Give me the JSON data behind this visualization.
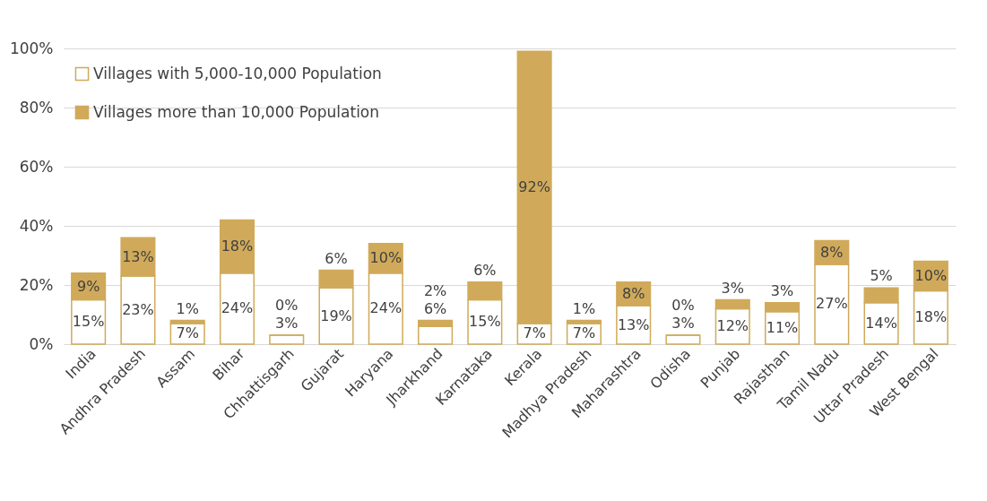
{
  "chart_data": {
    "type": "bar",
    "stacked": true,
    "categories": [
      "India",
      "Andhra Pradesh",
      "Assam",
      "Bihar",
      "Chhattisgarh",
      "Gujarat",
      "Haryana",
      "Jharkhand",
      "Karnataka",
      "Kerala",
      "Madhya Pradesh",
      "Maharashtra",
      "Odisha",
      "Punjab",
      "Rajasthan",
      "Tamil Nadu",
      "Uttar Pradesh",
      "West Bengal"
    ],
    "series": [
      {
        "name": "Villages with 5,000-10,000 Population",
        "color": "#ffffff",
        "values": [
          15,
          23,
          7,
          24,
          3,
          19,
          24,
          6,
          15,
          7,
          7,
          13,
          3,
          12,
          11,
          27,
          14,
          18
        ],
        "value_labels": [
          "15%",
          "23%",
          "7%",
          "24%",
          "3%",
          "19%",
          "24%",
          "6%",
          "15%",
          "7%",
          "7%",
          "13%",
          "3%",
          "12%",
          "11%",
          "27%",
          "14%",
          "18%"
        ]
      },
      {
        "name": "Villages more than 10,000 Population",
        "color": "#d0aa5a",
        "values": [
          9,
          13,
          1,
          18,
          0,
          6,
          10,
          2,
          6,
          92,
          1,
          8,
          0,
          3,
          3,
          8,
          5,
          10
        ],
        "value_labels": [
          "9%",
          "13%",
          "1%",
          "18%",
          "0%",
          "6%",
          "10%",
          "2%",
          "6%",
          "92%",
          "1%",
          "8%",
          "0%",
          "3%",
          "3%",
          "8%",
          "5%",
          "10%"
        ]
      }
    ],
    "ylim": [
      0,
      100
    ],
    "yticks": [
      {
        "value": 0,
        "label": "0%"
      },
      {
        "value": 20,
        "label": "20%"
      },
      {
        "value": 40,
        "label": "40%"
      },
      {
        "value": 60,
        "label": "60%"
      },
      {
        "value": 80,
        "label": "80%"
      },
      {
        "value": 100,
        "label": "100%"
      }
    ],
    "grid": "y",
    "legend": "top left"
  }
}
